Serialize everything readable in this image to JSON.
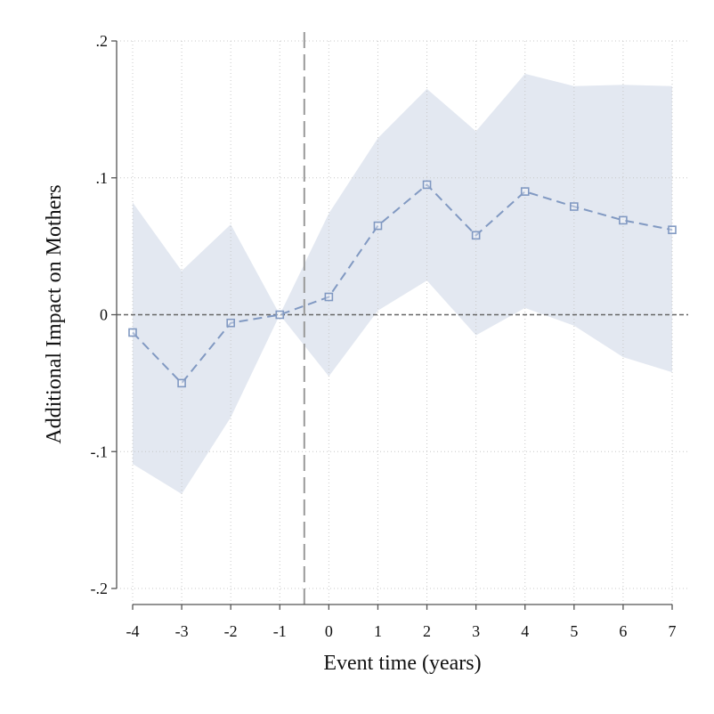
{
  "chart_data": {
    "type": "line",
    "title": "",
    "xlabel": "Event time (years)",
    "ylabel": "Additional Impact on Mothers",
    "xlim": [
      -4,
      7
    ],
    "ylim": [
      -0.2,
      0.2
    ],
    "x_ticks": [
      -4,
      -3,
      -2,
      -1,
      0,
      1,
      2,
      3,
      4,
      5,
      6,
      7
    ],
    "x_tick_labels": [
      "-4",
      "-3",
      "-2",
      "-1",
      "0",
      "1",
      "2",
      "3",
      "4",
      "5",
      "6",
      "7"
    ],
    "y_ticks": [
      -0.2,
      -0.1,
      0,
      0.1,
      0.2
    ],
    "y_tick_labels": [
      "-.2",
      "-.1",
      "0",
      ".1",
      ".2"
    ],
    "grid": true,
    "reference_lines": {
      "x": -0.5,
      "y": 0
    },
    "series": [
      {
        "x": [
          -4,
          -3,
          -2,
          -1,
          0,
          1,
          2,
          3,
          4,
          5,
          6,
          7
        ],
        "values": [
          -0.013,
          -0.05,
          -0.006,
          0.0,
          0.013,
          0.065,
          0.095,
          0.058,
          0.09,
          0.079,
          0.069,
          0.062
        ],
        "ci_lower": [
          -0.109,
          -0.131,
          -0.075,
          0.0,
          -0.045,
          0.003,
          0.025,
          -0.015,
          0.005,
          -0.008,
          -0.031,
          -0.042
        ],
        "ci_upper": [
          0.082,
          0.032,
          0.066,
          0.0,
          0.074,
          0.129,
          0.165,
          0.134,
          0.176,
          0.167,
          0.168,
          0.167
        ],
        "color": "#8199c2",
        "ci_color": "#e3e8f1",
        "marker": "hollow-square",
        "line_style": "dashed"
      }
    ]
  }
}
